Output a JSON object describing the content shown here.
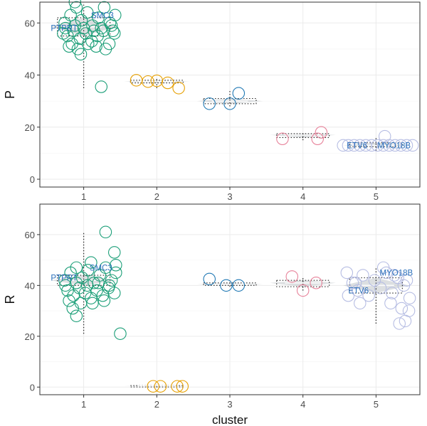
{
  "chart_data": [
    {
      "type": "scatter",
      "panel": "top",
      "ylabel": "P",
      "categories": [
        "1",
        "2",
        "3",
        "4",
        "5"
      ],
      "ylim": [
        -3,
        68
      ],
      "yticks": [
        0,
        20,
        40,
        60
      ],
      "grid": true,
      "series": [
        {
          "cluster": "1",
          "color": "#1a9e77",
          "center": 58.5,
          "range": [
            35,
            67
          ],
          "box": [
            55,
            62
          ],
          "width": 0.45,
          "points": [
            [
              0.74,
              60
            ],
            [
              0.82,
              63
            ],
            [
              0.9,
              66
            ],
            [
              0.97,
              61
            ],
            [
              1.05,
              64
            ],
            [
              1.12,
              59
            ],
            [
              1.2,
              62
            ],
            [
              1.28,
              66
            ],
            [
              1.36,
              60
            ],
            [
              1.43,
              63
            ],
            [
              0.78,
              55
            ],
            [
              0.86,
              57
            ],
            [
              0.95,
              54
            ],
            [
              1.03,
              56
            ],
            [
              1.11,
              53
            ],
            [
              1.19,
              55
            ],
            [
              1.27,
              57
            ],
            [
              1.35,
              52
            ],
            [
              1.42,
              56
            ],
            [
              0.8,
              51
            ],
            [
              0.92,
              50
            ],
            [
              1.06,
              52
            ],
            [
              1.17,
              51
            ],
            [
              1.3,
              50
            ],
            [
              0.75,
              58
            ],
            [
              0.88,
              59
            ],
            [
              1.0,
              58
            ],
            [
              1.14,
              57
            ],
            [
              1.24,
              58
            ],
            [
              1.38,
              59
            ],
            [
              0.96,
              48
            ],
            [
              0.88,
              68
            ],
            [
              1.24,
              35.5
            ],
            [
              0.84,
              52
            ],
            [
              0.72,
              56
            ],
            [
              1.4,
              57
            ]
          ]
        },
        {
          "cluster": "2",
          "color": "#e69f00",
          "center": 37.5,
          "range": [
            35,
            38.5
          ],
          "box": [
            37,
            38
          ],
          "width": 0.45,
          "points": [
            [
              1.72,
              38
            ],
            [
              1.88,
              37.5
            ],
            [
              2.0,
              37.8
            ],
            [
              2.15,
              37
            ],
            [
              2.3,
              35
            ]
          ]
        },
        {
          "cluster": "3",
          "color": "#1f78b4",
          "center": 30,
          "range": [
            28,
            34
          ],
          "box": [
            29,
            31
          ],
          "width": 0.45,
          "points": [
            [
              2.72,
              29
            ],
            [
              3.0,
              29
            ],
            [
              3.12,
              33
            ]
          ]
        },
        {
          "cluster": "4",
          "color": "#e7829a",
          "center": 17,
          "range": [
            15,
            18
          ],
          "box": [
            16,
            17.5
          ],
          "width": 0.45,
          "points": [
            [
              3.72,
              15.5
            ],
            [
              4.2,
              15.5
            ],
            [
              4.25,
              18
            ]
          ]
        },
        {
          "cluster": "5",
          "color": "#b6bde3",
          "center": 13,
          "range": [
            11,
            16
          ],
          "box": [
            12.5,
            14
          ],
          "width": 0.45,
          "points": [
            [
              4.55,
              13
            ],
            [
              4.62,
              13
            ],
            [
              4.7,
              13
            ],
            [
              4.78,
              13
            ],
            [
              4.86,
              13
            ],
            [
              4.94,
              13
            ],
            [
              5.02,
              13
            ],
            [
              5.1,
              13
            ],
            [
              5.18,
              13
            ],
            [
              5.26,
              13
            ],
            [
              5.34,
              13
            ],
            [
              5.42,
              13
            ],
            [
              5.5,
              13
            ],
            [
              5.12,
              16.5
            ]
          ]
        }
      ],
      "labels": [
        {
          "text": "SMC3",
          "cluster": 1,
          "dx": 0.1,
          "y": 63,
          "color": "#2a6fbb"
        },
        {
          "text": "PTPRT",
          "cluster": 1,
          "dx": -0.45,
          "y": 58,
          "color": "#2a6fbb"
        },
        {
          "text": "ETV6",
          "cluster": 5,
          "dx": -0.4,
          "y": 13,
          "color": "#2a6fbb"
        },
        {
          "text": "MYO18B",
          "cluster": 5,
          "dx": 0.02,
          "y": 13,
          "color": "#2a6fbb"
        }
      ]
    },
    {
      "type": "scatter",
      "panel": "bottom",
      "ylabel": "R",
      "xlabel": "cluster",
      "categories": [
        "1",
        "2",
        "3",
        "4",
        "5"
      ],
      "ylim": [
        -3,
        72
      ],
      "yticks": [
        0,
        20,
        40,
        60
      ],
      "grid": true,
      "series": [
        {
          "cluster": "1",
          "color": "#1a9e77",
          "center": 42,
          "range": [
            21,
            61
          ],
          "box": [
            40,
            44
          ],
          "width": 0.45,
          "points": [
            [
              0.74,
              42
            ],
            [
              0.82,
              45
            ],
            [
              0.9,
              47
            ],
            [
              0.98,
              43
            ],
            [
              1.06,
              46
            ],
            [
              1.14,
              41
            ],
            [
              1.22,
              44
            ],
            [
              1.3,
              47
            ],
            [
              1.38,
              42
            ],
            [
              1.44,
              45
            ],
            [
              0.78,
              38
            ],
            [
              0.86,
              36
            ],
            [
              0.94,
              39
            ],
            [
              1.02,
              37
            ],
            [
              1.1,
              35
            ],
            [
              1.18,
              38
            ],
            [
              1.26,
              36
            ],
            [
              1.34,
              39
            ],
            [
              1.42,
              37
            ],
            [
              0.8,
              34
            ],
            [
              0.96,
              33
            ],
            [
              1.12,
              33
            ],
            [
              1.28,
              34
            ],
            [
              0.75,
              40
            ],
            [
              0.9,
              41
            ],
            [
              1.05,
              40
            ],
            [
              1.2,
              41
            ],
            [
              1.35,
              40
            ],
            [
              0.9,
              28
            ],
            [
              1.3,
              61
            ],
            [
              1.42,
              53
            ],
            [
              1.5,
              21
            ],
            [
              1.1,
              49
            ],
            [
              0.85,
              31
            ],
            [
              1.44,
              48
            ]
          ]
        },
        {
          "cluster": "2",
          "color": "#e69f00",
          "center": 0.5,
          "range": [
            0,
            0.8
          ],
          "box": [
            0.2,
            0.6
          ],
          "width": 0.45,
          "points": [
            [
              1.95,
              0.3
            ],
            [
              2.05,
              0.3
            ],
            [
              2.28,
              0.3
            ],
            [
              2.35,
              0.3
            ]
          ]
        },
        {
          "cluster": "3",
          "color": "#1f78b4",
          "center": 40.5,
          "range": [
            39.5,
            42
          ],
          "box": [
            40,
            41
          ],
          "width": 0.45,
          "points": [
            [
              2.72,
              42.5
            ],
            [
              2.95,
              40
            ],
            [
              3.12,
              40
            ]
          ]
        },
        {
          "cluster": "4",
          "color": "#e7829a",
          "center": 41,
          "range": [
            38,
            43
          ],
          "box": [
            39.5,
            42
          ],
          "width": 0.45,
          "points": [
            [
              3.85,
              43.5
            ],
            [
              4.0,
              38
            ],
            [
              4.18,
              41
            ]
          ]
        },
        {
          "cluster": "5",
          "color": "#b6bde3",
          "center": 40,
          "range": [
            25,
            47
          ],
          "box": [
            37,
            43
          ],
          "width": 0.45,
          "points": [
            [
              4.6,
              45
            ],
            [
              4.68,
              41
            ],
            [
              4.75,
              38
            ],
            [
              4.82,
              44
            ],
            [
              4.9,
              36
            ],
            [
              4.98,
              42
            ],
            [
              5.06,
              39
            ],
            [
              5.14,
              45
            ],
            [
              5.22,
              37
            ],
            [
              5.3,
              43
            ],
            [
              5.38,
              40
            ],
            [
              5.46,
              35
            ],
            [
              4.62,
              36
            ],
            [
              4.78,
              33
            ],
            [
              5.2,
              33
            ],
            [
              5.35,
              31
            ],
            [
              5.45,
              30
            ],
            [
              5.4,
              26
            ],
            [
              5.32,
              25
            ],
            [
              4.72,
              41
            ],
            [
              5.1,
              47
            ],
            [
              5.25,
              44
            ],
            [
              5.42,
              42
            ]
          ]
        }
      ],
      "labels": [
        {
          "text": "SMC3",
          "cluster": 1,
          "dx": 0.08,
          "y": 47,
          "color": "#2a6fbb"
        },
        {
          "text": "PTPRT",
          "cluster": 1,
          "dx": -0.45,
          "y": 43,
          "color": "#2a6fbb"
        },
        {
          "text": "ETV6",
          "cluster": 5,
          "dx": -0.38,
          "y": 38,
          "color": "#2a6fbb"
        },
        {
          "text": "MYO18B",
          "cluster": 5,
          "dx": 0.05,
          "y": 45,
          "color": "#2a6fbb"
        }
      ]
    }
  ],
  "axis_text_color": "#4d4d4d",
  "gridline_color": "#ebebeb",
  "summary_color": "#bfc5c9"
}
